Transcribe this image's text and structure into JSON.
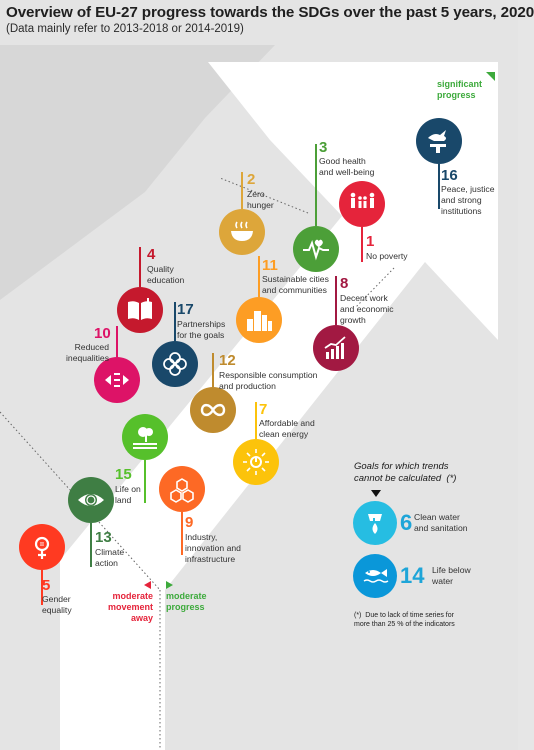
{
  "header": {
    "title": "Overview of EU-27 progress towards the SDGs over the past 5 years, 2020",
    "subtitle": "(Data mainly refer to 2013-2018 or 2014-2019)"
  },
  "legend": {
    "significant": "significant\nprogress",
    "moderate": "moderate\nprogress",
    "away": "moderate\nmovement\naway"
  },
  "colors": {
    "significant": "#3daa3c",
    "moderate": "#3daa3c",
    "away": "#e5243b"
  },
  "goals": [
    {
      "id": "goal-16",
      "number": "16",
      "label": "Peace, justice\nand strong\ninstitutions",
      "color": "#19486a",
      "icon": "dove-gavel-icon"
    },
    {
      "id": "goal-3",
      "number": "3",
      "label": "Good health\nand well-being",
      "color": "#4c9f38",
      "icon": "heartbeat-icon"
    },
    {
      "id": "goal-1",
      "number": "1",
      "label": "No poverty",
      "color": "#e5243b",
      "icon": "family-icon"
    },
    {
      "id": "goal-2",
      "number": "2",
      "label": "Zero\nhunger",
      "color": "#dda63a",
      "icon": "bowl-icon"
    },
    {
      "id": "goal-11",
      "number": "11",
      "label": "Sustainable cities\nand communities",
      "color": "#fd9d24",
      "icon": "city-icon"
    },
    {
      "id": "goal-8",
      "number": "8",
      "label": "Decent work\nand economic\ngrowth",
      "color": "#a21942",
      "icon": "growth-chart-icon"
    },
    {
      "id": "goal-4",
      "number": "4",
      "label": "Quality\neducation",
      "color": "#c5192d",
      "icon": "book-icon"
    },
    {
      "id": "goal-17",
      "number": "17",
      "label": "Partnerships\nfor the goals",
      "color": "#19486a",
      "icon": "rings-icon"
    },
    {
      "id": "goal-10",
      "number": "10",
      "label": "Reduced\ninequalities",
      "color": "#dd1367",
      "icon": "equality-icon"
    },
    {
      "id": "goal-12",
      "number": "12",
      "label": "Responsible consumption\nand production",
      "color": "#bf8b2e",
      "icon": "infinity-icon"
    },
    {
      "id": "goal-7",
      "number": "7",
      "label": "Affordable and\nclean energy",
      "color": "#fcc30b",
      "icon": "sun-power-icon"
    },
    {
      "id": "goal-15",
      "number": "15",
      "label": "Life on\nland",
      "color": "#56c02b",
      "icon": "tree-icon"
    },
    {
      "id": "goal-9",
      "number": "9",
      "label": "Industry,\ninnovation and\ninfrastructure",
      "color": "#fd6925",
      "icon": "cubes-icon"
    },
    {
      "id": "goal-13",
      "number": "13",
      "label": "Climate\naction",
      "color": "#3f7e44",
      "icon": "eye-globe-icon"
    },
    {
      "id": "goal-5",
      "number": "5",
      "label": "Gender\nequality",
      "color": "#ff3a21",
      "icon": "gender-icon"
    }
  ],
  "no_trend": {
    "title": "Goals for which trends\ncannot be calculated  (*)",
    "goals": [
      {
        "id": "goal-6",
        "number": "6",
        "label": "Clean water\nand sanitation",
        "color": "#26bde2",
        "icon": "water-drop-icon"
      },
      {
        "id": "goal-14",
        "number": "14",
        "label": "Life below\nwater",
        "color": "#0a97d9",
        "icon": "fish-icon"
      }
    ],
    "footnote": "(*)  Due to lack of time series for\nmore than 25 % of the indicators"
  }
}
